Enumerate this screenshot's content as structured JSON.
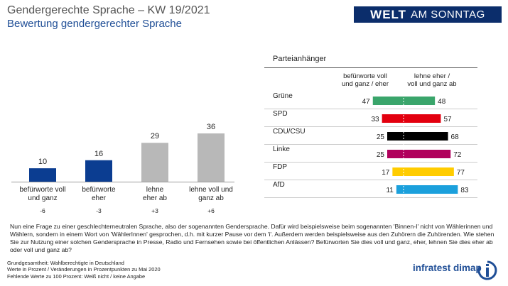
{
  "header": {
    "title": "Gendergerechte Sprache – KW 19/2021",
    "subtitle": "Bewertung gendergerechter Sprache",
    "logo_bold": "WELT",
    "logo_regular": "AM SONNTAG"
  },
  "chart_data": [
    {
      "type": "bar",
      "categories": [
        [
          "befürworte voll",
          "und ganz"
        ],
        [
          "befürworte",
          "eher"
        ],
        [
          "lehne",
          "eher ab"
        ],
        [
          "lehne voll und",
          "ganz ab"
        ]
      ],
      "values": [
        10,
        16,
        29,
        36
      ],
      "changes": [
        "-6",
        "-3",
        "+3",
        "+6"
      ],
      "colors": [
        "#0b3d91",
        "#0b3d91",
        "#b8b8b8",
        "#b8b8b8"
      ],
      "ylim": [
        0,
        40
      ]
    },
    {
      "type": "bar",
      "title": "Parteianhänger",
      "column_headers": [
        [
          "befürworte voll",
          "und ganz / eher"
        ],
        [
          "lehne eher /",
          "voll und ganz ab"
        ]
      ],
      "categories": [
        "Grüne",
        "SPD",
        "CDU/CSU",
        "Linke",
        "FDP",
        "AfD"
      ],
      "series": [
        {
          "name": "befürworte voll und ganz / eher",
          "values": [
            47,
            33,
            25,
            25,
            17,
            11
          ]
        },
        {
          "name": "lehne eher / voll und ganz ab",
          "values": [
            48,
            57,
            68,
            72,
            77,
            83
          ]
        }
      ],
      "colors": [
        "#3aa56b",
        "#e3000f",
        "#000000",
        "#b0005c",
        "#ffcc00",
        "#1ba0dc"
      ],
      "xlim": [
        0,
        100
      ]
    }
  ],
  "question": "Nun eine Frage zu einer geschlechterneutralen  Sprache, also der sogenannten  Gendersprache. Dafür wird beispielsweise beim sogenannten  'Binnen-I' nicht von Wählerinnen und Wählern, sondern in einem Wort von 'WählerInnen'  gesprochen, d.h. mit kurzer Pause vor dem 'i'. Außerdem werden beispielsweise aus den Zuhörern die Zuhörenden.  Wie stehen Sie zur Nutzung  einer solchen Gendersprache in Presse, Radio und Fernsehen sowie bei öffentlichen Anlässen? Befürworten  Sie dies voll und ganz, eher, lehnen  Sie dies eher ab oder voll und ganz ab?",
  "footnote": [
    "Grundgesamtheit:  Wahlberechtigte in Deutschland",
    "Werte in Prozent / Veränderungen  in Prozentpunkten zu Mai 2020",
    "Fehlende Werte zu 100 Prozent: Weiß nicht / keine Angabe"
  ],
  "brand": "infratest dimap"
}
